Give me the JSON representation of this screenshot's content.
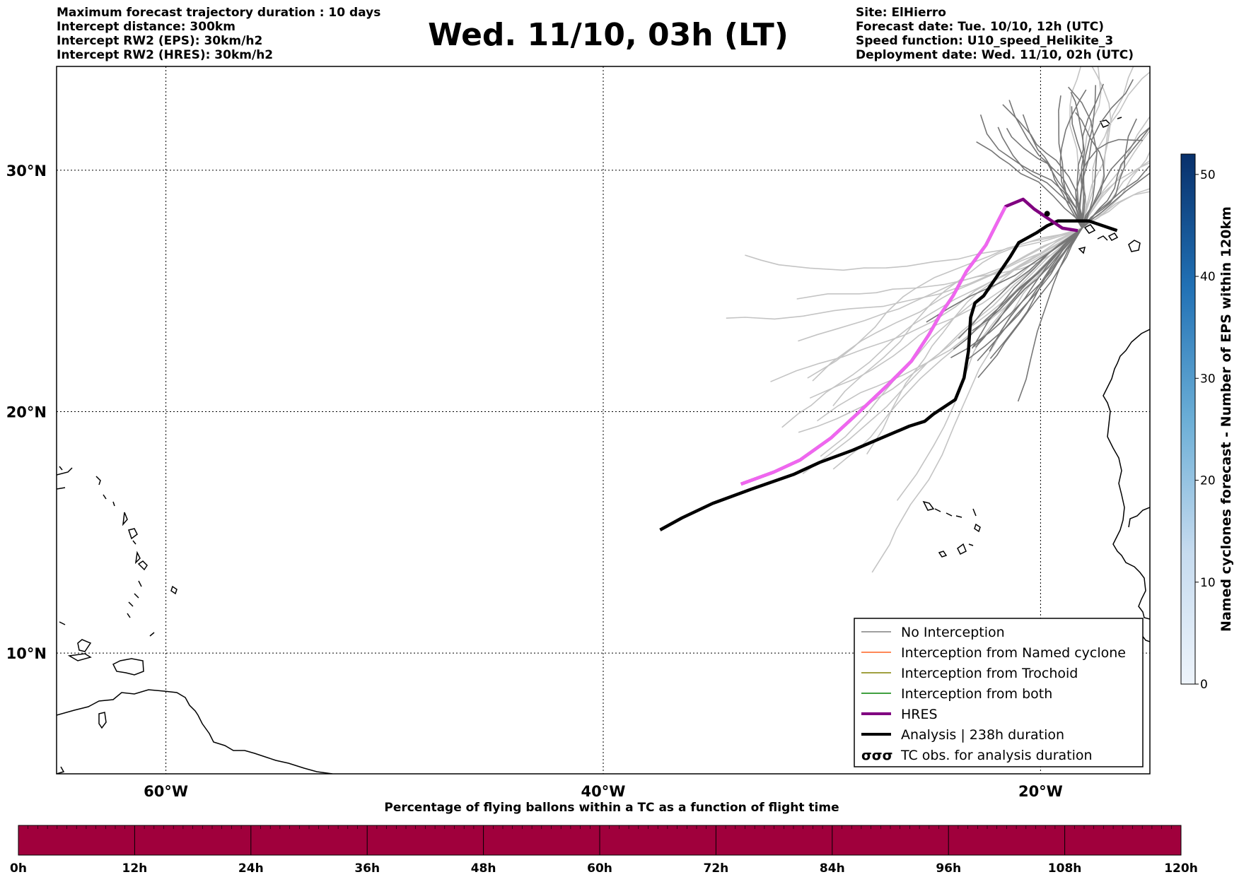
{
  "header": {
    "left_lines": [
      "Maximum forecast trajectory duration : 10 days",
      "Intercept distance: 300km",
      "Intercept RW2 (EPS):  30km/h2",
      "Intercept RW2 (HRES): 30km/h2"
    ],
    "title": "Wed. 11/10, 03h (LT)",
    "right_lines": [
      "Site: ElHierro",
      "Forecast date: Tue. 10/10, 12h (UTC)",
      "Speed function: U10_speed_Helikite_3",
      "Deployment date: Wed. 11/10, 02h (UTC)"
    ]
  },
  "map": {
    "lon_ticks": [
      "60°W",
      "40°W",
      "20°W"
    ],
    "lat_ticks": [
      "30°N",
      "20°N",
      "10°N"
    ],
    "lon_range": [
      -65,
      -15
    ],
    "lat_range": [
      5,
      34.3
    ],
    "grid": "dotted"
  },
  "legend": {
    "items": [
      {
        "label": "No Interception",
        "color": "#808080"
      },
      {
        "label": "Interception from Named cyclone",
        "color": "#ff6020"
      },
      {
        "label": "Interception from Trochoid",
        "color": "#808000"
      },
      {
        "label": "Interception from both",
        "color": "#008000"
      },
      {
        "label": "HRES",
        "color": "#800080"
      },
      {
        "label": "Analysis | 238h duration",
        "color": "#000000"
      },
      {
        "label": "TC obs. for analysis duration",
        "color": "#000000"
      }
    ],
    "tc_symbol": "σσσ"
  },
  "colorbar_right": {
    "label": "Named cyclones forecast - Number of EPS within 120km",
    "ticks": [
      "0",
      "10",
      "20",
      "30",
      "40",
      "50"
    ],
    "range": [
      0,
      52
    ]
  },
  "colorbar_bottom": {
    "label": "Percentage of flying ballons within a TC as a function of flight time",
    "ticks": [
      "0h",
      "12h",
      "24h",
      "36h",
      "48h",
      "60h",
      "72h",
      "84h",
      "96h",
      "108h",
      "120h"
    ],
    "color": "#a0003c"
  },
  "tracks": {
    "analysis": [
      [
        -16.5,
        27.5
      ],
      [
        -17.8,
        27.9
      ],
      [
        -19.2,
        27.9
      ],
      [
        -19.7,
        27.7
      ],
      [
        -20.2,
        27.4
      ],
      [
        -21.0,
        27.0
      ],
      [
        -21.4,
        26.4
      ],
      [
        -22.0,
        25.6
      ],
      [
        -22.6,
        24.8
      ],
      [
        -23.0,
        24.5
      ],
      [
        -23.2,
        23.9
      ],
      [
        -23.3,
        22.5
      ],
      [
        -23.5,
        21.4
      ],
      [
        -23.9,
        20.5
      ],
      [
        -24.9,
        19.9
      ],
      [
        -25.3,
        19.6
      ],
      [
        -26.0,
        19.4
      ],
      [
        -27.3,
        18.9
      ],
      [
        -28.6,
        18.4
      ],
      [
        -30.1,
        17.9
      ],
      [
        -31.3,
        17.4
      ],
      [
        -33.2,
        16.8
      ],
      [
        -35.0,
        16.2
      ],
      [
        -36.4,
        15.6
      ],
      [
        -37.4,
        15.1
      ]
    ],
    "hres_magenta": [
      [
        -18.3,
        27.5
      ],
      [
        -19.0,
        27.6
      ],
      [
        -20.3,
        28.4
      ],
      [
        -20.8,
        28.8
      ],
      [
        -21.6,
        28.5
      ],
      [
        -22.0,
        27.8
      ],
      [
        -22.5,
        26.9
      ],
      [
        -23.4,
        25.8
      ],
      [
        -24.0,
        24.8
      ],
      [
        -24.6,
        24.0
      ],
      [
        -25.1,
        23.2
      ],
      [
        -25.9,
        22.1
      ],
      [
        -27.0,
        21.1
      ],
      [
        -28.4,
        19.9
      ],
      [
        -29.6,
        18.9
      ],
      [
        -31.0,
        18.0
      ],
      [
        -32.2,
        17.5
      ],
      [
        -33.7,
        17.0
      ]
    ],
    "hres_pink": [
      [
        -21.6,
        28.5
      ],
      [
        -22.0,
        27.8
      ],
      [
        -22.5,
        26.9
      ],
      [
        -23.4,
        25.8
      ],
      [
        -24.0,
        24.8
      ],
      [
        -24.6,
        24.0
      ],
      [
        -25.1,
        23.2
      ],
      [
        -25.9,
        22.1
      ],
      [
        -27.0,
        21.1
      ],
      [
        -28.4,
        19.9
      ],
      [
        -29.6,
        18.9
      ],
      [
        -31.0,
        18.0
      ],
      [
        -32.2,
        17.5
      ],
      [
        -32.8,
        17.3
      ],
      [
        -33.7,
        17.0
      ]
    ]
  }
}
